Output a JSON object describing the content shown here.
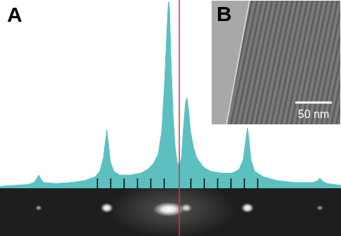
{
  "chart_data": {
    "type": "line",
    "x": [
      0,
      20,
      40,
      48,
      52,
      55,
      58,
      62,
      80,
      100,
      120,
      135,
      142,
      147,
      150,
      152,
      154,
      157,
      162,
      170,
      185,
      200,
      210,
      218,
      225,
      230,
      234,
      237,
      239,
      240,
      241,
      243,
      246,
      249,
      252,
      255,
      258,
      261,
      264,
      266,
      268,
      271,
      275,
      280,
      290,
      300,
      315,
      330,
      340,
      346,
      349,
      352,
      354,
      357,
      362,
      375,
      395,
      420,
      445,
      452,
      455,
      458,
      465,
      485
    ],
    "values": [
      1,
      1.5,
      2,
      3,
      5,
      7,
      5,
      3,
      2.5,
      3,
      4,
      6,
      9,
      16,
      25,
      31,
      24,
      14,
      9,
      7,
      7,
      8,
      10,
      13,
      18,
      30,
      55,
      80,
      96,
      99,
      96,
      70,
      40,
      22,
      14,
      12,
      16,
      32,
      46,
      48,
      42,
      30,
      22,
      16,
      11,
      9,
      8,
      8,
      10,
      15,
      24,
      32,
      26,
      15,
      9,
      6,
      4,
      3,
      3,
      4,
      5.5,
      4,
      2.5,
      1.5
    ],
    "color": "#5cc0c0",
    "xlim": [
      0,
      485
    ],
    "ylim": [
      0,
      100
    ],
    "tick_labels": false,
    "grid": false,
    "reference_line": 255,
    "order_marks": [
      138,
      157,
      176,
      195,
      214,
      233,
      271,
      290,
      309,
      328,
      347,
      366
    ],
    "panel_labels": [
      "A",
      "B"
    ],
    "scale_bar": "50 nm"
  }
}
